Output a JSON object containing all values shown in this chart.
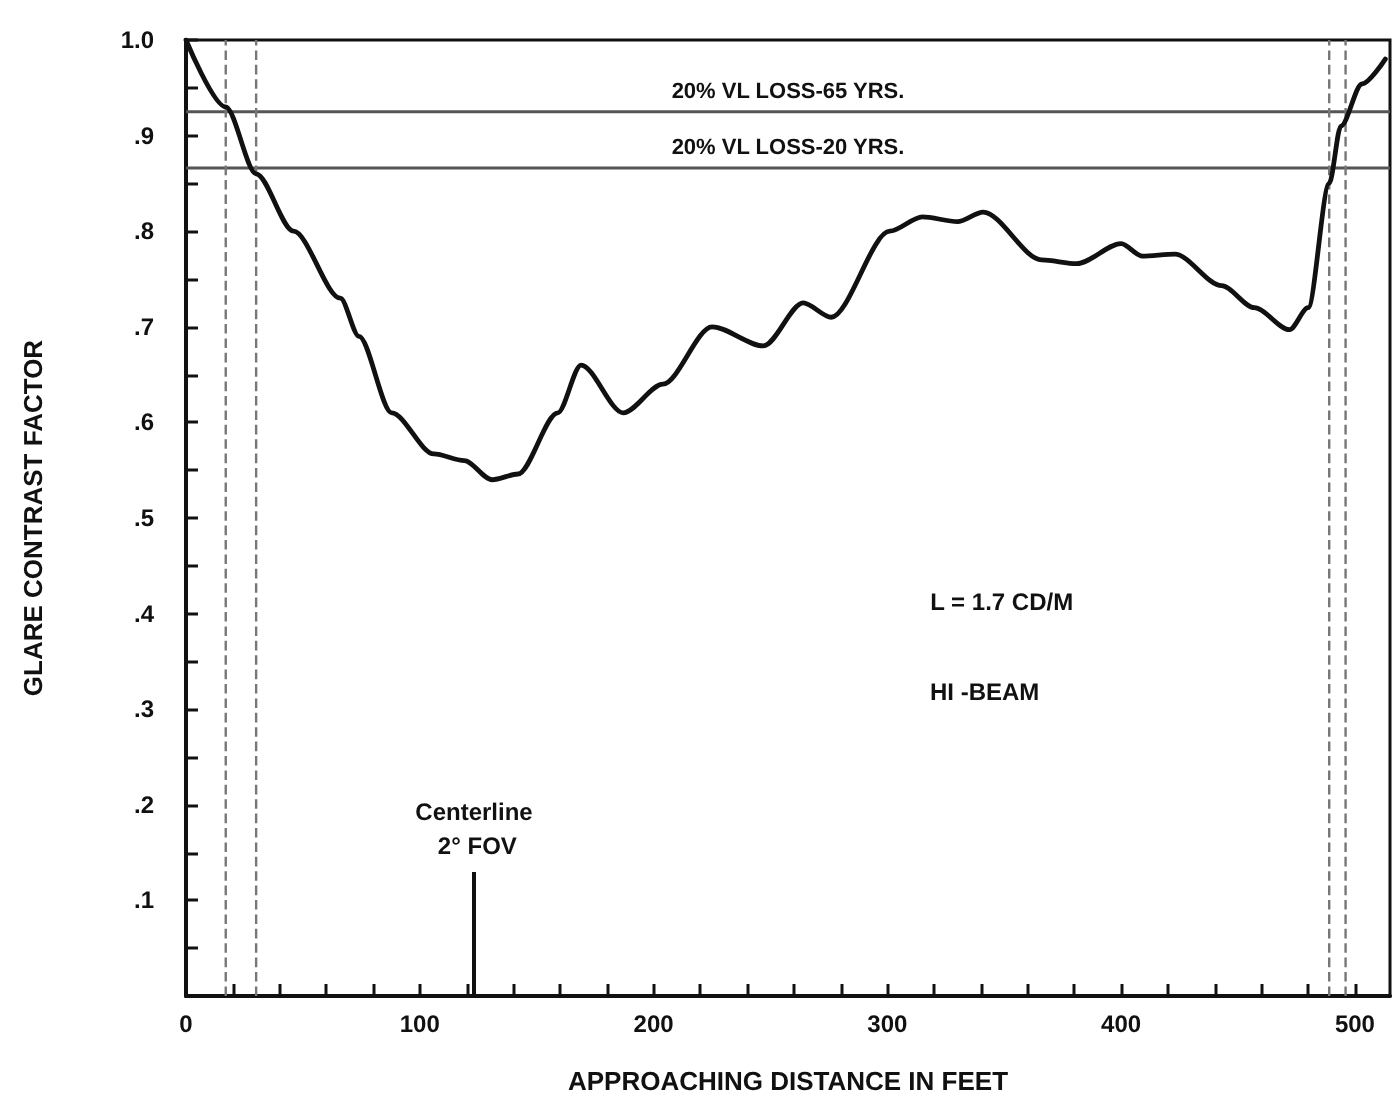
{
  "chart_data": {
    "type": "line",
    "xlabel": "APPROACHING DISTANCE IN FEET",
    "ylabel": "GLARE CONTRAST FACTOR",
    "x": [
      0,
      17,
      30,
      46,
      66,
      74,
      88,
      106,
      119,
      131,
      142,
      159,
      169,
      187,
      204,
      225,
      247,
      264,
      276,
      301,
      315,
      330,
      341,
      366,
      381,
      400,
      409,
      423,
      443,
      457,
      472,
      480,
      489,
      494,
      503,
      513
    ],
    "series": [
      {
        "color": "#111111",
        "values": [
          1.0,
          0.93,
          0.86,
          0.8,
          0.73,
          0.69,
          0.61,
          0.567,
          0.56,
          0.54,
          0.546,
          0.61,
          0.66,
          0.61,
          0.64,
          0.7,
          0.68,
          0.725,
          0.71,
          0.8,
          0.815,
          0.81,
          0.82,
          0.77,
          0.766,
          0.787,
          0.774,
          0.776,
          0.743,
          0.72,
          0.697,
          0.72,
          0.85,
          0.91,
          0.954,
          0.98
        ]
      }
    ],
    "xlim": [
      0,
      515
    ],
    "ylim": [
      0,
      1.0
    ],
    "xticks": [
      {
        "value": 0,
        "label": "0"
      },
      {
        "value": 20,
        "label": null
      },
      {
        "value": 40,
        "label": null
      },
      {
        "value": 60,
        "label": null
      },
      {
        "value": 80,
        "label": null
      },
      {
        "value": 100,
        "label": "100"
      },
      {
        "value": 120,
        "label": null
      },
      {
        "value": 140,
        "label": null
      },
      {
        "value": 160,
        "label": null
      },
      {
        "value": 180,
        "label": null
      },
      {
        "value": 200,
        "label": "200"
      },
      {
        "value": 220,
        "label": null
      },
      {
        "value": 240,
        "label": null
      },
      {
        "value": 260,
        "label": null
      },
      {
        "value": 280,
        "label": null
      },
      {
        "value": 300,
        "label": "300"
      },
      {
        "value": 320,
        "label": null
      },
      {
        "value": 340,
        "label": null
      },
      {
        "value": 360,
        "label": null
      },
      {
        "value": 380,
        "label": null
      },
      {
        "value": 400,
        "label": "400"
      },
      {
        "value": 420,
        "label": null
      },
      {
        "value": 440,
        "label": null
      },
      {
        "value": 460,
        "label": null
      },
      {
        "value": 480,
        "label": null
      },
      {
        "value": 500,
        "label": "500"
      }
    ],
    "yticks": [
      {
        "value": 0,
        "label": null
      },
      {
        "value": 0.05,
        "label": null
      },
      {
        "value": 0.1,
        "label": ".1"
      },
      {
        "value": 0.15,
        "label": null
      },
      {
        "value": 0.2,
        "label": ".2"
      },
      {
        "value": 0.25,
        "label": null
      },
      {
        "value": 0.3,
        "label": ".3"
      },
      {
        "value": 0.35,
        "label": null
      },
      {
        "value": 0.4,
        "label": ".4"
      },
      {
        "value": 0.45,
        "label": null
      },
      {
        "value": 0.5,
        "label": ".5"
      },
      {
        "value": 0.55,
        "label": null
      },
      {
        "value": 0.6,
        "label": ".6"
      },
      {
        "value": 0.65,
        "label": null
      },
      {
        "value": 0.7,
        "label": ".7"
      },
      {
        "value": 0.75,
        "label": null
      },
      {
        "value": 0.8,
        "label": ".8"
      },
      {
        "value": 0.85,
        "label": null
      },
      {
        "value": 0.9,
        "label": ".9"
      },
      {
        "value": 0.95,
        "label": null
      },
      {
        "value": 1.0,
        "label": "1.0"
      }
    ],
    "ref_lines": [
      {
        "axis": "y",
        "value": 0.925,
        "label": "20% VL LOSS-65 YRS.",
        "color": "#555555",
        "line_style": "solid"
      },
      {
        "axis": "y",
        "value": 0.866,
        "label": "20% VL LOSS-20 YRS.",
        "color": "#555555",
        "line_style": "solid"
      },
      {
        "axis": "x",
        "value": 17,
        "color": "#777777",
        "line_style": "dashed"
      },
      {
        "axis": "x",
        "value": 30,
        "color": "#777777",
        "line_style": "dashed"
      },
      {
        "axis": "x",
        "value": 489,
        "color": "#777777",
        "line_style": "dashed"
      },
      {
        "axis": "x",
        "value": 496,
        "color": "#777777",
        "line_style": "dashed"
      }
    ],
    "annotations": [
      "Centerline 2° FOV",
      "L = 1.7 CD/M",
      "HI -BEAM"
    ],
    "grid": false,
    "marker": "none",
    "line_style": "solid"
  }
}
